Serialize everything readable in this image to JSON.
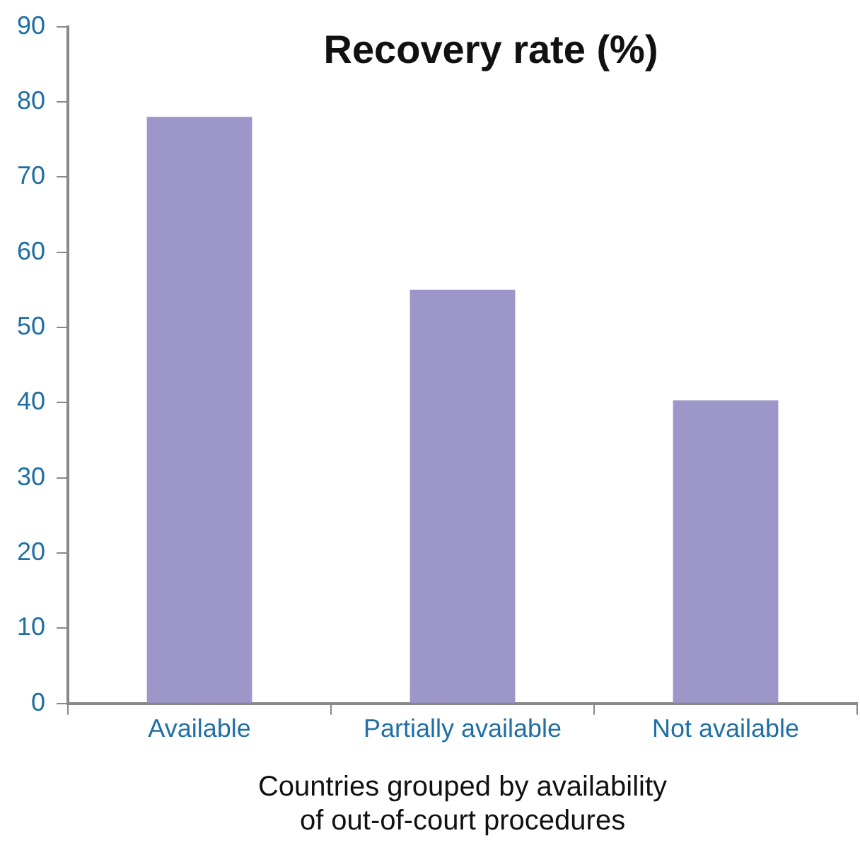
{
  "chart_data": {
    "type": "bar",
    "title": "Recovery rate (%)",
    "xlabel": "Countries grouped by availability\nof out-of-court procedures",
    "categories": [
      "Available",
      "Partially available",
      "Not available"
    ],
    "values": [
      78,
      55,
      40.3
    ],
    "color": "#9c96c9",
    "ylim": [
      0,
      90
    ],
    "yticks": [
      0,
      10,
      20,
      30,
      40,
      50,
      60,
      70,
      80,
      90
    ],
    "grid": false,
    "legend": false
  }
}
